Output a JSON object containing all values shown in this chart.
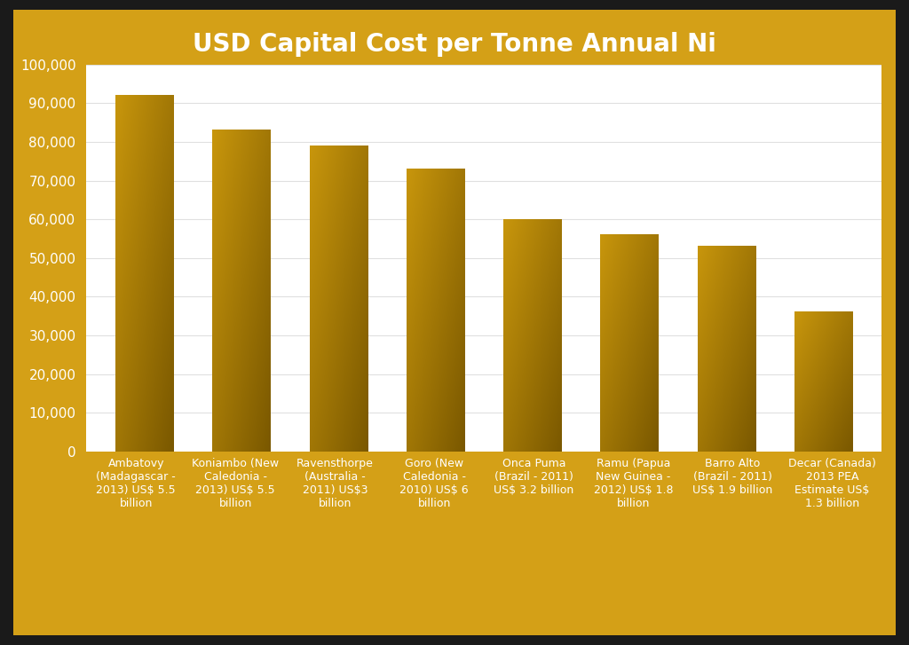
{
  "title": "USD Capital Cost per Tonne Annual Ni",
  "categories": [
    "Ambatovy\n(Madagascar -\n2013) US$ 5.5\nbillion",
    "Koniambo (New\nCaledonia -\n2013) US$ 5.5\nbillion",
    "Ravensthorpe\n(Australia -\n2011) US$3\nbillion",
    "Goro (New\nCaledonia -\n2010) US$ 6\nbillion",
    "Onca Puma\n(Brazil - 2011)\nUS$ 3.2 billion",
    "Ramu (Papua\nNew Guinea -\n2012) US$ 1.8\nbillion",
    "Barro Alto\n(Brazil - 2011)\nUS$ 1.9 billion",
    "Decar (Canada)\n2013 PEA\nEstimate US$\n1.3 billion"
  ],
  "values": [
    92000,
    83000,
    79000,
    73000,
    60000,
    56000,
    53000,
    36000
  ],
  "bar_color_light": "#C8960C",
  "bar_color_dark": "#7A5800",
  "background_outer": "#D4A017",
  "background_inner": "#FFFFFF",
  "title_color": "#FFFFFF",
  "xlabel_color": "#FFFFFF",
  "ytick_color": "#FFFFFF",
  "ylim": [
    0,
    100000
  ],
  "yticks": [
    0,
    10000,
    20000,
    30000,
    40000,
    50000,
    60000,
    70000,
    80000,
    90000,
    100000
  ],
  "title_fontsize": 20,
  "tick_fontsize": 11,
  "xlabel_fontsize": 9,
  "border_color": "#1a1a1a",
  "grid_color": "#e0e0e0"
}
